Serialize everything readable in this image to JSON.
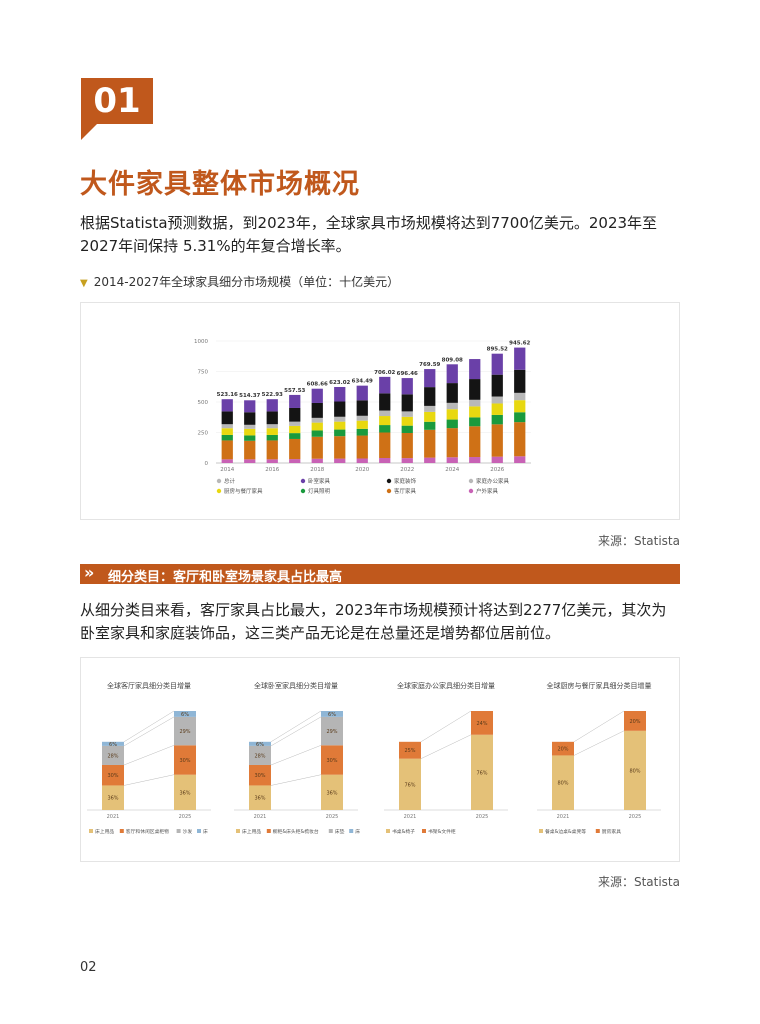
{
  "section": {
    "number": "01",
    "title": "大件家具整体市场概况"
  },
  "intro": "根据Statista预测数据，到2023年，全球家具市场规模将达到7700亿美元。2023年至2027年间保持 5.31%的年复合增长率。",
  "main_chart_label": "2014-2027年全球家具细分市场规模（单位：十亿美元）",
  "source1": "来源：Statista",
  "banner": {
    "arrows": "»",
    "text": "细分类目：客厅和卧室场景家具占比最高"
  },
  "para2": "从细分类目来看，客厅家具占比最大，2023年市场规模预计将达到2277亿美元，其次为卧室家具和家庭装饰品，这三类产品无论是在总量还是增势都位居前位。",
  "source2": "来源：Statista",
  "page_number": "02",
  "chart_data": [
    {
      "type": "bar",
      "stacked": true,
      "title": "2014-2027年全球家具细分市场规模（单位：十亿美元）",
      "categories": [
        "2014",
        "2015",
        "2016",
        "2017",
        "2018",
        "2019",
        "2020",
        "2021",
        "2022",
        "2023",
        "2024",
        "2025",
        "2026",
        "2027"
      ],
      "x_tick_labels": [
        "2014",
        "2016",
        "2018",
        "2020",
        "2022",
        "2024",
        "2026"
      ],
      "ylim": [
        0,
        1000
      ],
      "y_ticks": [
        "0",
        "250",
        "500",
        "750",
        "1000"
      ],
      "totals": [
        523.16,
        514.37,
        522.93,
        557.53,
        608.66,
        623.02,
        634.49,
        706.02,
        696.46,
        769.59,
        809.08,
        851.57,
        895.52,
        945.62
      ],
      "total_labels": [
        "523.16",
        "514.37",
        "522.93",
        "557.53",
        "608.66",
        "623.02",
        "634.49",
        "706.02",
        "696.46",
        "769.59",
        "809.08",
        "",
        "895.52",
        "945.62"
      ],
      "series": [
        {
          "name": "户外家具",
          "color": "#c862b5",
          "values": [
            30,
            30,
            30,
            32,
            35,
            36,
            37,
            41,
            40,
            44,
            47,
            49,
            52,
            55
          ]
        },
        {
          "name": "客厅家具",
          "color": "#cf7116",
          "values": [
            155,
            152,
            155,
            165,
            180,
            184,
            188,
            209,
            206,
            228,
            239,
            252,
            265,
            280
          ]
        },
        {
          "name": "灯具照明",
          "color": "#1a9a3d",
          "values": [
            45,
            44,
            45,
            48,
            52,
            54,
            55,
            61,
            60,
            66,
            70,
            73,
            77,
            81
          ]
        },
        {
          "name": "厨房与餐厅家具",
          "color": "#e8d810",
          "values": [
            55,
            54,
            55,
            59,
            64,
            65,
            67,
            74,
            73,
            81,
            85,
            90,
            94,
            99
          ]
        },
        {
          "name": "家庭办公家具",
          "color": "#b8b8b8",
          "values": [
            33,
            33,
            33,
            35,
            39,
            40,
            40,
            45,
            44,
            49,
            52,
            54,
            57,
            60
          ]
        },
        {
          "name": "家庭装饰",
          "color": "#141414",
          "values": [
            105,
            103,
            105,
            112,
            122,
            125,
            127,
            141,
            140,
            154,
            162,
            170,
            179,
            189
          ]
        },
        {
          "name": "卧室家具",
          "color": "#6a40a8",
          "values": [
            100,
            98,
            100,
            107,
            117,
            119,
            120,
            135,
            133,
            148,
            154,
            164,
            172,
            182
          ]
        }
      ],
      "legend": [
        "总计",
        "卧室家具",
        "家庭装饰",
        "家庭办公家具",
        "厨房与餐厅家具",
        "灯具照明",
        "客厅家具",
        "户外家具"
      ],
      "legend_colors": [
        "#b8b8b8",
        "#6a40a8",
        "#141414",
        "#b8b8b8",
        "#e8d810",
        "#1a9a3d",
        "#cf7116",
        "#c862b5"
      ]
    },
    {
      "type": "bar",
      "stacked": true,
      "title": "全球客厅家具细分类目增量",
      "categories": [
        "2021",
        "2025"
      ],
      "series": [
        {
          "name": "床上用品",
          "color": "#e4c178",
          "values": [
            36,
            36
          ]
        },
        {
          "name": "客厅和休闲区桌柜物",
          "color": "#e07a38",
          "values": [
            30,
            30
          ]
        },
        {
          "name": "沙发",
          "color": "#b5b5b5",
          "values": [
            28,
            29
          ]
        },
        {
          "name": "床",
          "color": "#8fb6d6",
          "values": [
            6,
            6
          ]
        }
      ],
      "segment_labels": [
        [
          "36%",
          "30%",
          "28%",
          "6%"
        ],
        [
          "36%",
          "30%",
          "29%",
          "6%"
        ]
      ],
      "legend": [
        "床上用品",
        "客厅和休闲区桌柜物",
        "沙发",
        "床"
      ]
    },
    {
      "type": "bar",
      "stacked": true,
      "title": "全球卧室家具细分类目增量",
      "categories": [
        "2021",
        "2025"
      ],
      "series": [
        {
          "name": "床上用品",
          "color": "#e4c178",
          "values": [
            36,
            36
          ]
        },
        {
          "name": "橱柜&床头柜&梳妆台",
          "color": "#e07a38",
          "values": [
            30,
            30
          ]
        },
        {
          "name": "床垫",
          "color": "#b5b5b5",
          "values": [
            28,
            29
          ]
        },
        {
          "name": "床",
          "color": "#8fb6d6",
          "values": [
            6,
            6
          ]
        }
      ],
      "segment_labels": [
        [
          "36%",
          "30%",
          "28%",
          "6%"
        ],
        [
          "36%",
          "30%",
          "29%",
          "6%"
        ]
      ],
      "legend": [
        "床上用品",
        "橱柜&床头柜&梳妆台",
        "床垫",
        "床"
      ]
    },
    {
      "type": "bar",
      "stacked": true,
      "title": "全球家庭办公家具细分类目增量",
      "categories": [
        "2021",
        "2025"
      ],
      "series": [
        {
          "name": "书桌&椅子",
          "color": "#e4c178",
          "values": [
            76,
            76
          ]
        },
        {
          "name": "书架&文件柜",
          "color": "#e07a38",
          "values": [
            25,
            24
          ]
        }
      ],
      "segment_labels": [
        [
          "76%",
          "25%"
        ],
        [
          "76%",
          "24%"
        ]
      ],
      "legend": [
        "书桌&椅子",
        "书架&文件柜"
      ]
    },
    {
      "type": "bar",
      "stacked": true,
      "title": "全球厨房与餐厅家具细分类目增量",
      "categories": [
        "2021",
        "2025"
      ],
      "series": [
        {
          "name": "餐桌&边桌&桌凳等",
          "color": "#e4c178",
          "values": [
            80,
            80
          ]
        },
        {
          "name": "厨房家具",
          "color": "#e07a38",
          "values": [
            20,
            20
          ]
        }
      ],
      "segment_labels": [
        [
          "80%",
          "20%"
        ],
        [
          "80%",
          "20%"
        ]
      ],
      "legend": [
        "餐桌&边桌&桌凳等",
        "厨房家具"
      ]
    }
  ]
}
